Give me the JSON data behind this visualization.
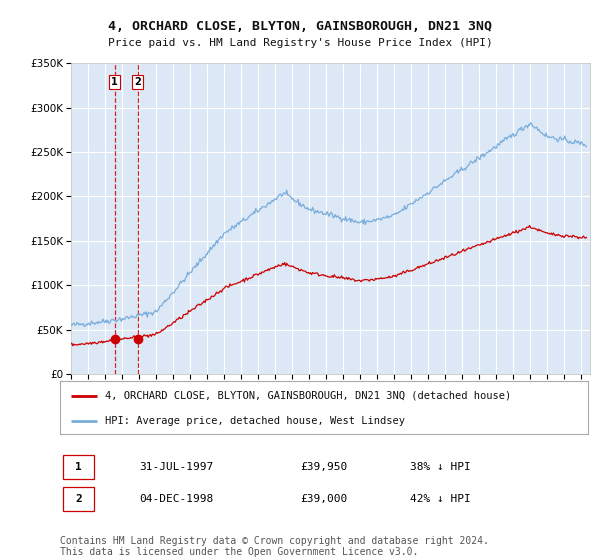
{
  "title": "4, ORCHARD CLOSE, BLYTON, GAINSBOROUGH, DN21 3NQ",
  "subtitle": "Price paid vs. HM Land Registry's House Price Index (HPI)",
  "ylabel_ticks": [
    "£0",
    "£50K",
    "£100K",
    "£150K",
    "£200K",
    "£250K",
    "£300K",
    "£350K"
  ],
  "ylim": [
    0,
    350000
  ],
  "xlim_start": 1995.0,
  "xlim_end": 2025.5,
  "legend_line1": "4, ORCHARD CLOSE, BLYTON, GAINSBOROUGH, DN21 3NQ (detached house)",
  "legend_line2": "HPI: Average price, detached house, West Lindsey",
  "sale1_label": "1",
  "sale1_date": "31-JUL-1997",
  "sale1_price": "£39,950",
  "sale1_pct": "38% ↓ HPI",
  "sale1_year": 1997.58,
  "sale1_value": 39950,
  "sale2_label": "2",
  "sale2_date": "04-DEC-1998",
  "sale2_price": "£39,000",
  "sale2_pct": "42% ↓ HPI",
  "sale2_year": 1998.92,
  "sale2_value": 39000,
  "red_line_color": "#cc0000",
  "blue_line_color": "#7aaddb",
  "bg_plot_color": "#dce8f5",
  "bg_fig_color": "#ffffff",
  "grid_color": "#ffffff",
  "dashed_line_color": "#cc0000",
  "footer": "Contains HM Land Registry data © Crown copyright and database right 2024.\nThis data is licensed under the Open Government Licence v3.0.",
  "copyright_fontsize": 7.0
}
